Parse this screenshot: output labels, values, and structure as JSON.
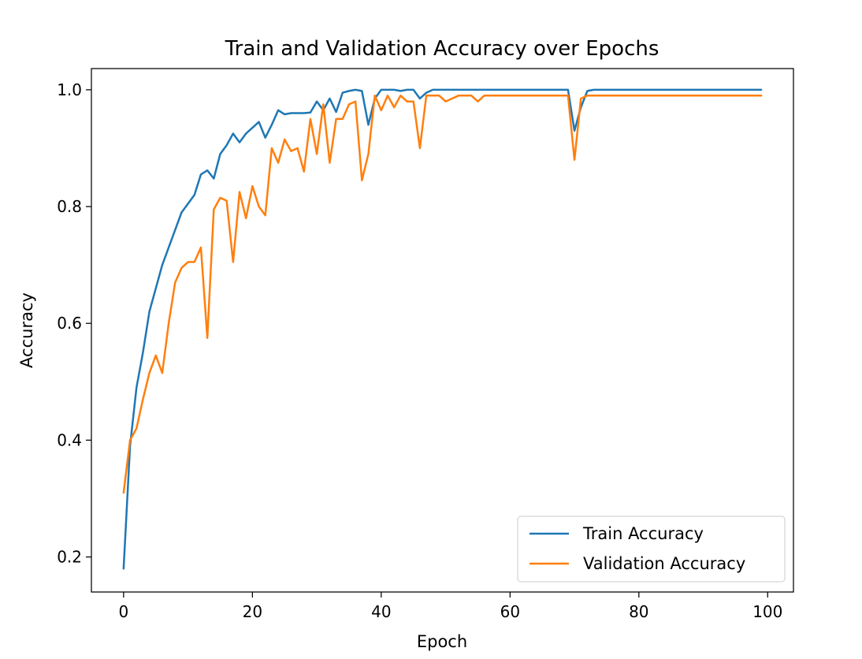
{
  "chart_data": {
    "type": "line",
    "title": "Train and Validation Accuracy over Epochs",
    "xlabel": "Epoch",
    "ylabel": "Accuracy",
    "xlim": [
      -5,
      104
    ],
    "ylim": [
      0.14,
      1.0363
    ],
    "xticks": [
      0,
      20,
      40,
      60,
      80,
      100
    ],
    "xtick_labels": [
      "0",
      "20",
      "40",
      "60",
      "80",
      "100"
    ],
    "yticks": [
      0.2,
      0.4,
      0.6,
      0.8,
      1.0
    ],
    "ytick_labels": [
      "0.2",
      "0.4",
      "0.6",
      "0.8",
      "1.0"
    ],
    "grid": false,
    "legend_position": "lower-right",
    "x": [
      0,
      1,
      2,
      3,
      4,
      5,
      6,
      7,
      8,
      9,
      10,
      11,
      12,
      13,
      14,
      15,
      16,
      17,
      18,
      19,
      20,
      21,
      22,
      23,
      24,
      25,
      26,
      27,
      28,
      29,
      30,
      31,
      32,
      33,
      34,
      35,
      36,
      37,
      38,
      39,
      40,
      41,
      42,
      43,
      44,
      45,
      46,
      47,
      48,
      49,
      50,
      51,
      52,
      53,
      54,
      55,
      56,
      57,
      58,
      59,
      60,
      61,
      62,
      63,
      64,
      65,
      66,
      67,
      68,
      69,
      70,
      71,
      72,
      73,
      74,
      75,
      76,
      77,
      78,
      79,
      80,
      81,
      82,
      83,
      84,
      85,
      86,
      87,
      88,
      89,
      90,
      91,
      92,
      93,
      94,
      95,
      96,
      97,
      98,
      99
    ],
    "series": [
      {
        "name": "Train Accuracy",
        "color": "#1f77b4",
        "values": [
          0.18,
          0.39,
          0.49,
          0.55,
          0.62,
          0.66,
          0.7,
          0.73,
          0.76,
          0.79,
          0.805,
          0.82,
          0.855,
          0.862,
          0.848,
          0.89,
          0.905,
          0.925,
          0.91,
          0.925,
          0.935,
          0.945,
          0.918,
          0.94,
          0.965,
          0.958,
          0.96,
          0.96,
          0.96,
          0.961,
          0.98,
          0.965,
          0.985,
          0.962,
          0.995,
          0.998,
          1.0,
          0.998,
          0.94,
          0.985,
          1.0,
          1.0,
          1.0,
          0.998,
          1.0,
          1.0,
          0.985,
          0.995,
          1.0,
          1.0,
          1.0,
          1.0,
          1.0,
          1.0,
          1.0,
          1.0,
          1.0,
          1.0,
          1.0,
          1.0,
          1.0,
          1.0,
          1.0,
          1.0,
          1.0,
          1.0,
          1.0,
          1.0,
          1.0,
          1.0,
          0.93,
          0.97,
          0.998,
          1.0,
          1.0,
          1.0,
          1.0,
          1.0,
          1.0,
          1.0,
          1.0,
          1.0,
          1.0,
          1.0,
          1.0,
          1.0,
          1.0,
          1.0,
          1.0,
          1.0,
          1.0,
          1.0,
          1.0,
          1.0,
          1.0,
          1.0,
          1.0,
          1.0,
          1.0,
          1.0
        ]
      },
      {
        "name": "Validation Accuracy",
        "color": "#ff7f0e",
        "values": [
          0.31,
          0.4,
          0.42,
          0.47,
          0.515,
          0.545,
          0.515,
          0.6,
          0.67,
          0.695,
          0.705,
          0.705,
          0.73,
          0.575,
          0.795,
          0.815,
          0.81,
          0.705,
          0.825,
          0.78,
          0.835,
          0.8,
          0.785,
          0.9,
          0.875,
          0.915,
          0.895,
          0.9,
          0.86,
          0.95,
          0.89,
          0.975,
          0.875,
          0.95,
          0.95,
          0.975,
          0.98,
          0.845,
          0.89,
          0.99,
          0.965,
          0.99,
          0.97,
          0.99,
          0.98,
          0.98,
          0.9,
          0.99,
          0.99,
          0.99,
          0.98,
          0.985,
          0.99,
          0.99,
          0.99,
          0.98,
          0.99,
          0.99,
          0.99,
          0.99,
          0.99,
          0.99,
          0.99,
          0.99,
          0.99,
          0.99,
          0.99,
          0.99,
          0.99,
          0.99,
          0.88,
          0.985,
          0.99,
          0.99,
          0.99,
          0.99,
          0.99,
          0.99,
          0.99,
          0.99,
          0.99,
          0.99,
          0.99,
          0.99,
          0.99,
          0.99,
          0.99,
          0.99,
          0.99,
          0.99,
          0.99,
          0.99,
          0.99,
          0.99,
          0.99,
          0.99,
          0.99,
          0.99,
          0.99,
          0.99
        ]
      }
    ]
  }
}
